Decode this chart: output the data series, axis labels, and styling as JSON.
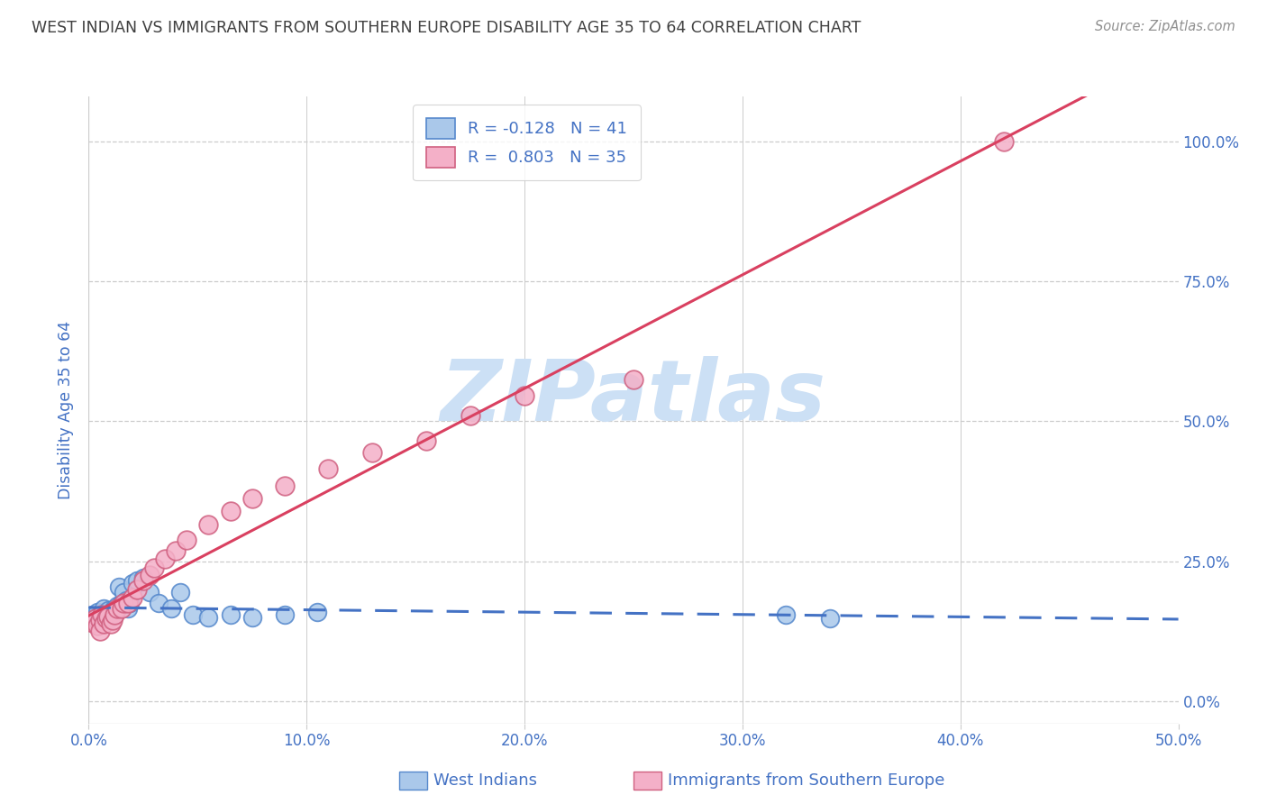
{
  "title": "WEST INDIAN VS IMMIGRANTS FROM SOUTHERN EUROPE DISABILITY AGE 35 TO 64 CORRELATION CHART",
  "source": "Source: ZipAtlas.com",
  "ylabel": "Disability Age 35 to 64",
  "xlabel_tick_vals": [
    0.0,
    0.1,
    0.2,
    0.3,
    0.4,
    0.5
  ],
  "ylabel_tick_vals": [
    0.0,
    0.25,
    0.5,
    0.75,
    1.0
  ],
  "xmin": 0.0,
  "xmax": 0.5,
  "ymin": -0.04,
  "ymax": 1.08,
  "legend1_label": "R = -0.128   N = 41",
  "legend2_label": "R =  0.803   N = 35",
  "scatter1_face": "#aac8ea",
  "scatter1_edge": "#5588cc",
  "scatter2_face": "#f4b0c8",
  "scatter2_edge": "#d06080",
  "line1_color": "#4472c4",
  "line2_color": "#d94060",
  "watermark": "ZIPatlas",
  "watermark_color": "#cce0f5",
  "title_color": "#404040",
  "blue_color": "#4472c4",
  "grid_color": "#cccccc",
  "bottom_labels": [
    "West Indians",
    "Immigrants from Southern Europe"
  ],
  "west_indian_x": [
    0.002,
    0.003,
    0.003,
    0.004,
    0.004,
    0.005,
    0.005,
    0.006,
    0.006,
    0.007,
    0.007,
    0.008,
    0.008,
    0.009,
    0.009,
    0.01,
    0.011,
    0.012,
    0.012,
    0.013,
    0.014,
    0.015,
    0.016,
    0.017,
    0.018,
    0.019,
    0.02,
    0.022,
    0.025,
    0.028,
    0.032,
    0.038,
    0.042,
    0.048,
    0.055,
    0.065,
    0.075,
    0.09,
    0.105,
    0.32,
    0.34
  ],
  "west_indian_y": [
    0.155,
    0.15,
    0.145,
    0.16,
    0.148,
    0.155,
    0.145,
    0.158,
    0.148,
    0.152,
    0.165,
    0.155,
    0.148,
    0.162,
    0.145,
    0.158,
    0.162,
    0.165,
    0.155,
    0.17,
    0.205,
    0.175,
    0.195,
    0.18,
    0.165,
    0.175,
    0.21,
    0.215,
    0.22,
    0.195,
    0.175,
    0.165,
    0.195,
    0.155,
    0.15,
    0.155,
    0.15,
    0.155,
    0.16,
    0.155,
    0.148
  ],
  "southern_europe_x": [
    0.002,
    0.003,
    0.004,
    0.005,
    0.005,
    0.006,
    0.007,
    0.008,
    0.009,
    0.01,
    0.011,
    0.012,
    0.013,
    0.015,
    0.016,
    0.018,
    0.02,
    0.022,
    0.025,
    0.028,
    0.03,
    0.035,
    0.04,
    0.045,
    0.055,
    0.065,
    0.075,
    0.09,
    0.11,
    0.13,
    0.155,
    0.175,
    0.2,
    0.25,
    0.42
  ],
  "southern_europe_y": [
    0.14,
    0.148,
    0.135,
    0.145,
    0.125,
    0.155,
    0.138,
    0.148,
    0.152,
    0.138,
    0.145,
    0.155,
    0.165,
    0.165,
    0.175,
    0.175,
    0.185,
    0.2,
    0.215,
    0.225,
    0.238,
    0.255,
    0.268,
    0.288,
    0.315,
    0.34,
    0.362,
    0.385,
    0.415,
    0.445,
    0.465,
    0.51,
    0.545,
    0.575,
    1.0
  ]
}
